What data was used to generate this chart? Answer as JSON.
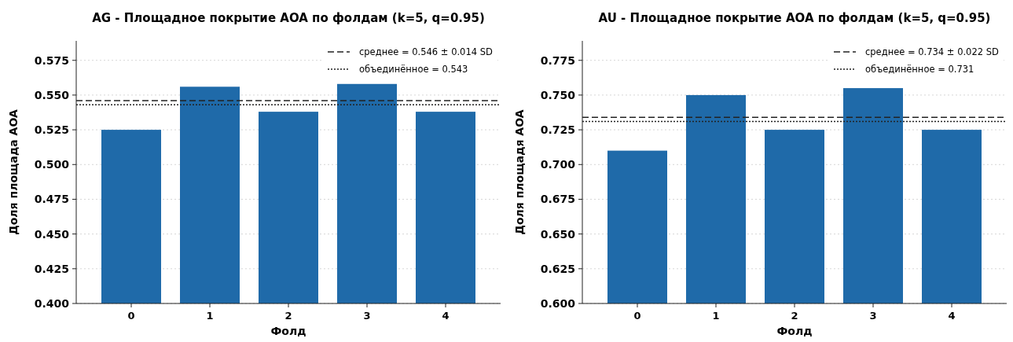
{
  "chart_data": [
    {
      "type": "bar",
      "title": "AG - Площадное покрытие AOA по фолдам (k=5, q=0.95)",
      "xlabel": "Фолд",
      "ylabel": "Доля площада AOA",
      "categories": [
        "0",
        "1",
        "2",
        "3",
        "4"
      ],
      "values": [
        0.525,
        0.556,
        0.538,
        0.558,
        0.538
      ],
      "color": "#1f6aa9",
      "ylim": [
        0.4,
        0.589
      ],
      "yticks": [
        {
          "value": 0.4,
          "label": "0.400"
        },
        0.425,
        {
          "value": 0.45,
          "label": "0.450"
        },
        0.475,
        {
          "value": 0.5,
          "label": "0.500"
        },
        0.525,
        {
          "value": 0.55,
          "label": "0.550"
        },
        0.575
      ],
      "grid": "y",
      "legend": "top right",
      "ref_lines": [
        {
          "axis": "y",
          "value": 0.546,
          "label": "среднее = 0.546 ± 0.014 SD",
          "line_style": "dashed",
          "color": "#222222"
        },
        {
          "axis": "y",
          "value": 0.543,
          "label": "объединённое = 0.543",
          "line_style": "dotted",
          "color": "#222222"
        }
      ]
    },
    {
      "type": "bar",
      "title": "AU - Площадное покрытие AOA по фолдам (k=5, q=0.95)",
      "xlabel": "Фолд",
      "ylabel": "Доля площадя AOA",
      "categories": [
        "0",
        "1",
        "2",
        "3",
        "4"
      ],
      "values": [
        0.71,
        0.75,
        0.725,
        0.755,
        0.725
      ],
      "color": "#1f6aa9",
      "ylim": [
        0.6,
        0.789
      ],
      "yticks": [
        {
          "value": 0.6,
          "label": "0.600"
        },
        0.625,
        {
          "value": 0.65,
          "label": "0.650"
        },
        0.675,
        {
          "value": 0.7,
          "label": "0.700"
        },
        0.725,
        {
          "value": 0.75,
          "label": "0.750"
        },
        0.775
      ],
      "grid": "y",
      "legend": "top right",
      "ref_lines": [
        {
          "axis": "y",
          "value": 0.734,
          "label": "среднее = 0.734 ± 0.022 SD",
          "line_style": "dashed",
          "color": "#222222"
        },
        {
          "axis": "y",
          "value": 0.731,
          "label": "объединённое = 0.731",
          "line_style": "dotted",
          "color": "#222222"
        }
      ]
    }
  ]
}
